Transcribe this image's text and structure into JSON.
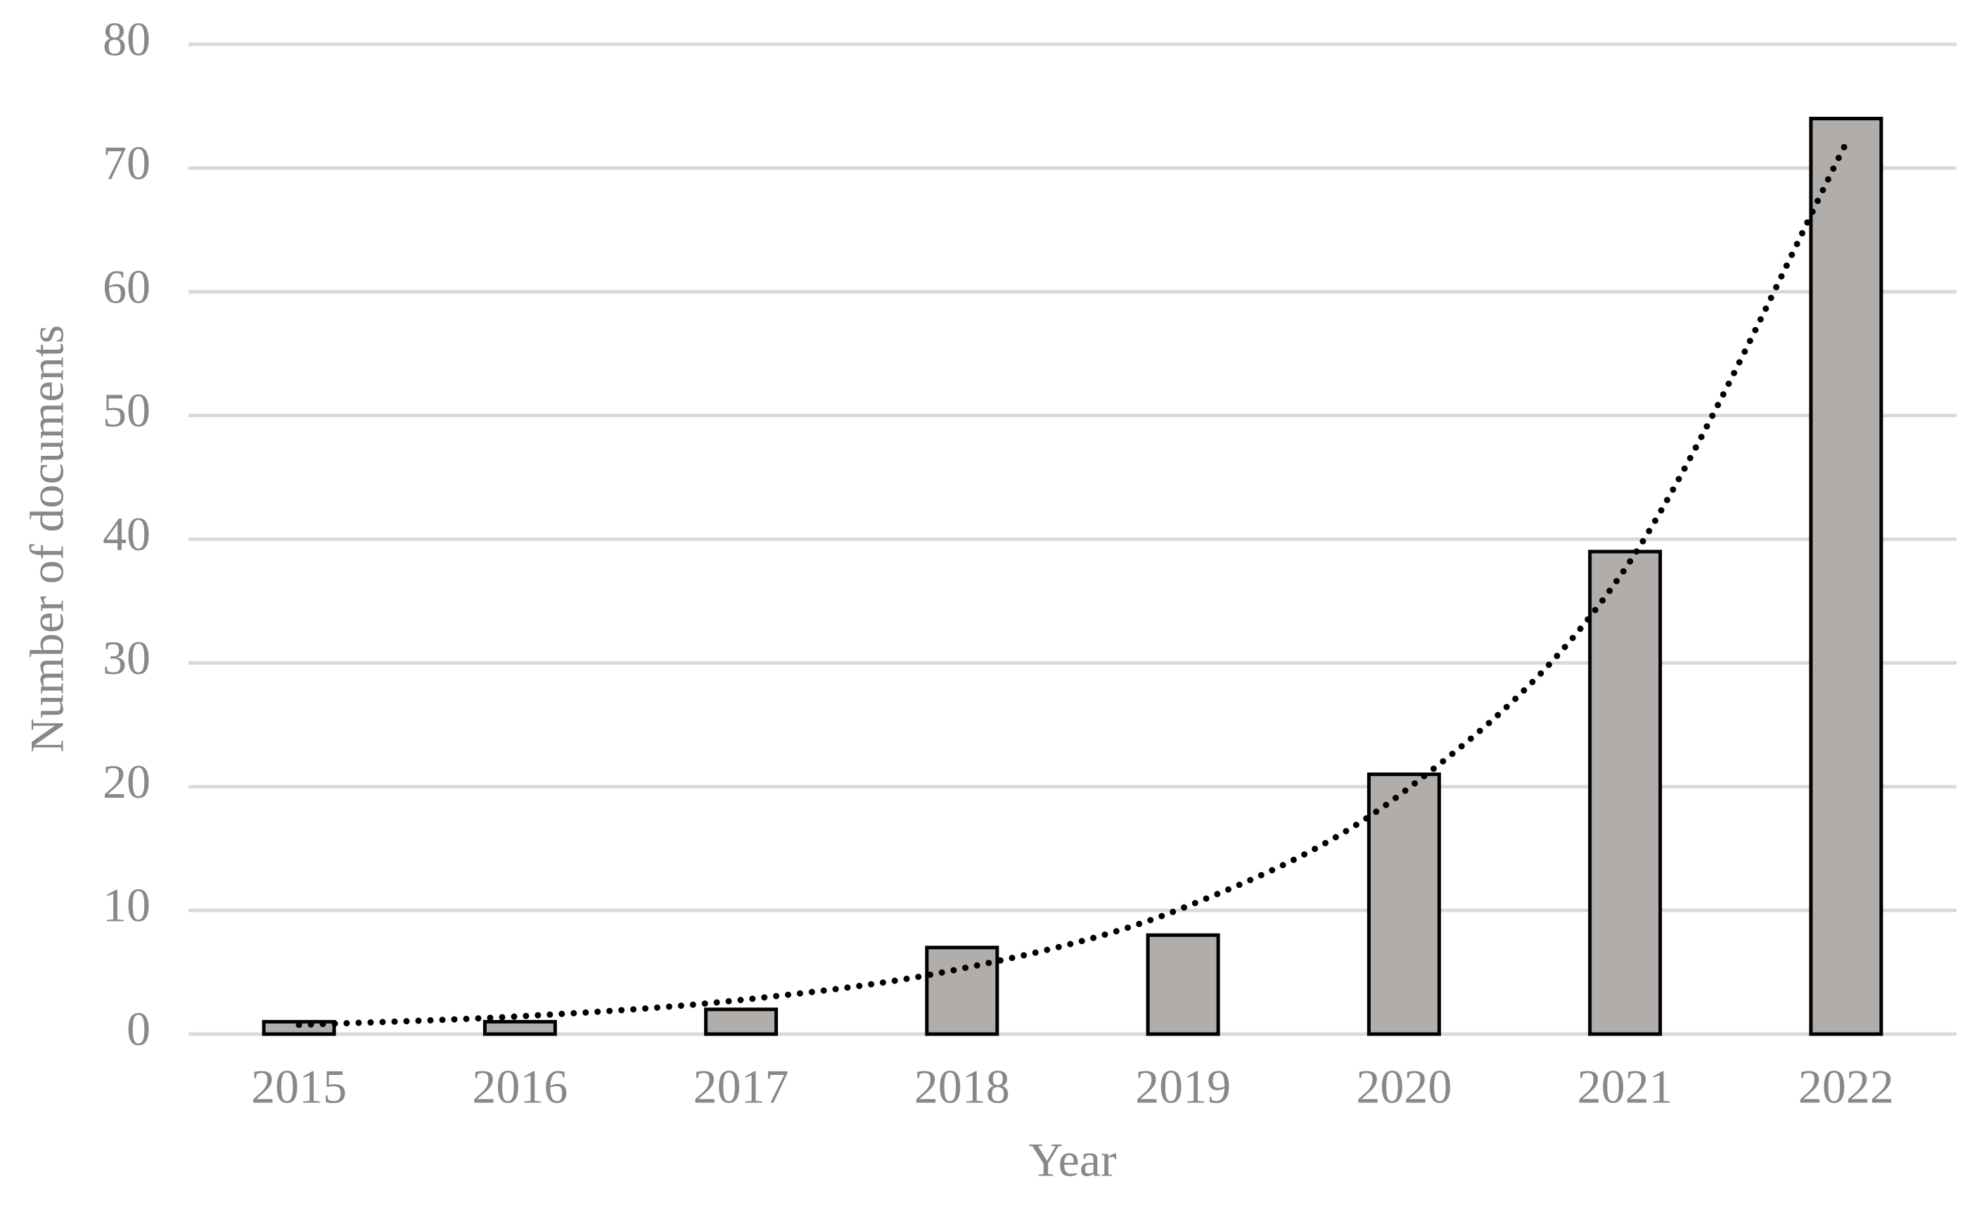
{
  "chart_data": {
    "type": "bar",
    "x_label": "Year",
    "y_label": "Number of documents",
    "categories": [
      "2015",
      "2016",
      "2017",
      "2018",
      "2019",
      "2020",
      "2021",
      "2022"
    ],
    "values": [
      1,
      1,
      2,
      7,
      8,
      21,
      39,
      74
    ],
    "color": "#b0adab",
    "ylim": [
      0,
      80
    ],
    "yticks": [
      0,
      10,
      20,
      30,
      40,
      50,
      60,
      70,
      80
    ],
    "grid": true,
    "trendline": {
      "style": "dotted",
      "color": "#000000",
      "values": [
        0.75,
        1.44,
        2.76,
        5.3,
        10.2,
        19.6,
        37.6,
        72
      ]
    }
  }
}
